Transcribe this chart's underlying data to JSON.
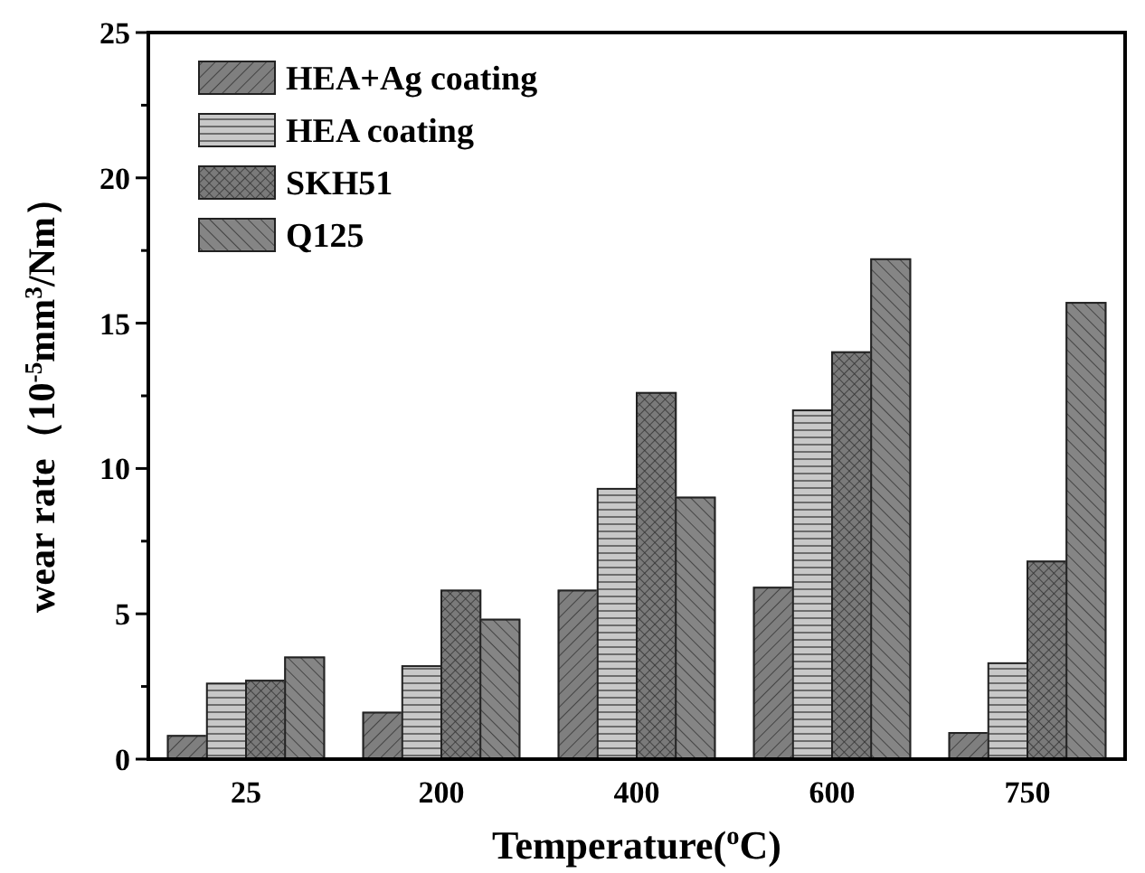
{
  "chart_data": {
    "type": "bar",
    "xlabel": "Temperature($^{o}$C)",
    "ylabel": "wear rate（10$^{-5}$mm$^{3}$/Nm）",
    "categories": [
      "25",
      "200",
      "400",
      "600",
      "750"
    ],
    "series": [
      {
        "name": "HEA+Ag coating",
        "color": "#7f7f7f",
        "values": [
          0.8,
          1.6,
          5.8,
          5.9,
          0.9
        ]
      },
      {
        "name": "HEA coating",
        "color": "#c8c8c8",
        "values": [
          2.6,
          3.2,
          9.3,
          12.0,
          3.3
        ]
      },
      {
        "name": "SKH51",
        "color": "#7a7a7a",
        "values": [
          2.7,
          5.8,
          12.6,
          14.0,
          6.8
        ]
      },
      {
        "name": "Q125",
        "color": "#858585",
        "values": [
          3.5,
          4.8,
          9.0,
          17.2,
          15.7
        ]
      }
    ],
    "ylim": [
      0,
      25
    ],
    "yticks": [
      0,
      {
        "value": 2.5,
        "label": null
      },
      5,
      {
        "value": 7.5,
        "label": null
      },
      10,
      {
        "value": 12.5,
        "label": null
      },
      15,
      {
        "value": 17.5,
        "label": null
      },
      20,
      {
        "value": 22.5,
        "label": null
      },
      25
    ],
    "grid": false,
    "legend": "top left"
  }
}
